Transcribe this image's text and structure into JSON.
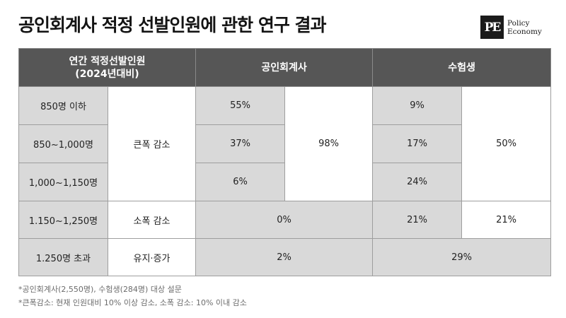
{
  "title": "공인회계사 적정 선발인원에 관한 연구 결과",
  "logo": {
    "mark": "PE",
    "line1": "Policy",
    "line2": "Economy"
  },
  "table": {
    "header": {
      "col1_line1": "연간 적정선발인원",
      "col1_line2": "(2024년대비)",
      "col2": "공인회계사",
      "col3": "수험생"
    },
    "groups": {
      "large_decrease": "큰폭 감소",
      "small_decrease": "소폭 감소",
      "maintain_increase": "유지·증가"
    },
    "rows": [
      {
        "range": "850명 이하",
        "cpa": "55%",
        "exam": "9%"
      },
      {
        "range": "850~1,000명",
        "cpa": "37%",
        "exam": "17%"
      },
      {
        "range": "1,000~1,150명",
        "cpa": "6%",
        "exam": "24%"
      },
      {
        "range": "1.150~1,250명",
        "cpa": "0%",
        "exam": "21%"
      },
      {
        "range": "1.250명 초과",
        "cpa": "2%",
        "exam": "29%"
      }
    ],
    "cpa_large_total": "98%",
    "exam_large_total": "50%",
    "exam_small_total": "21%"
  },
  "notes": [
    "*공인회계사(2,550명), 수험생(284명) 대상 설문",
    "*큰폭감소: 현재 인원대비 10% 이상 감소, 소폭 감소: 10% 이내 감소"
  ]
}
